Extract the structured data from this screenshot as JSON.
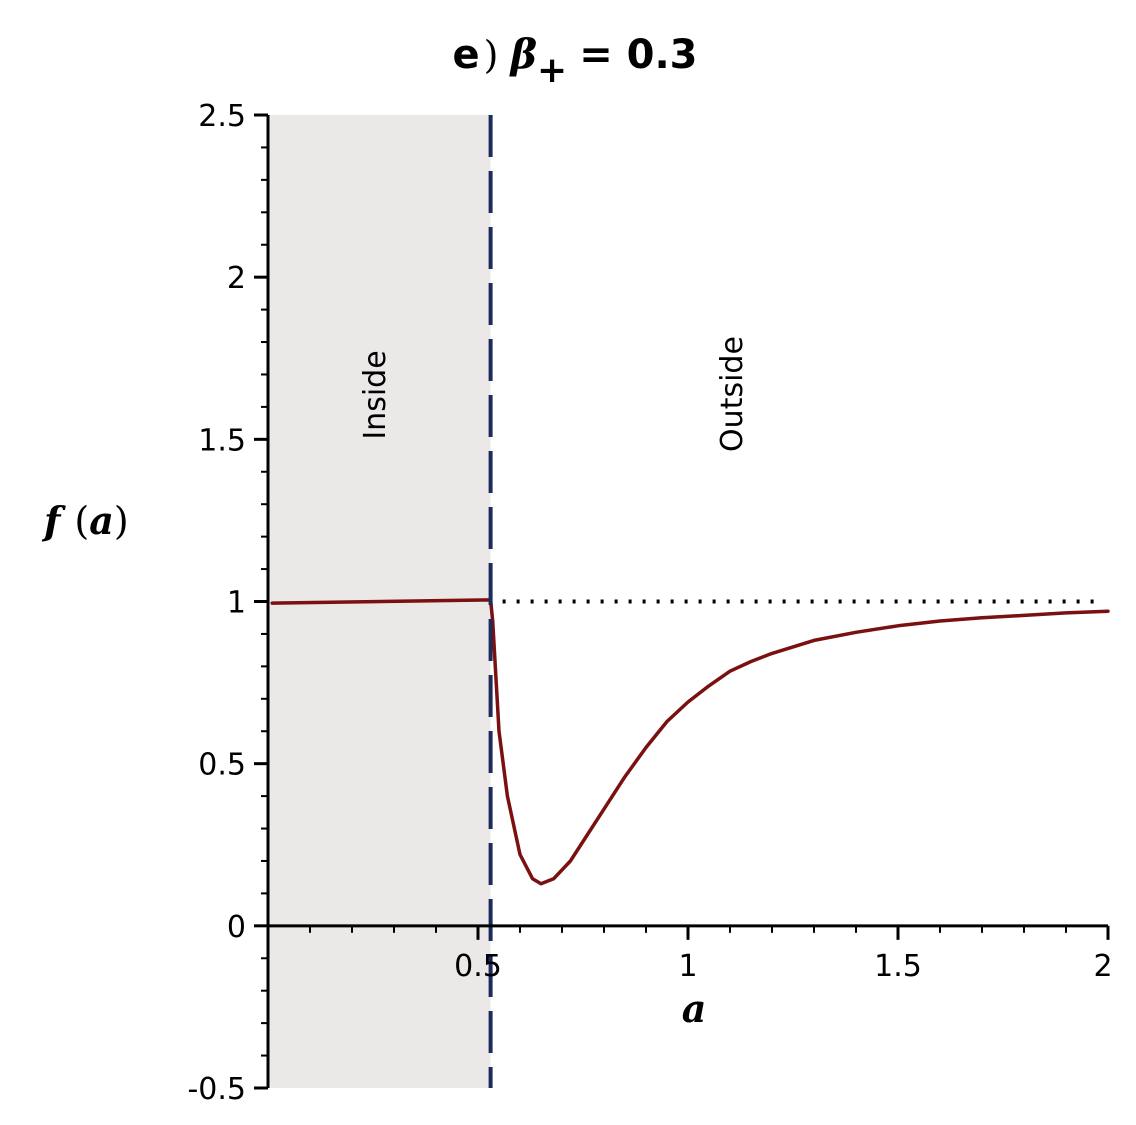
{
  "chart_data": {
    "type": "line",
    "title": {
      "label": "e",
      "symbol": "β",
      "subscript": "+",
      "value_text": "= 0.3"
    },
    "xlabel": "a",
    "ylabel": {
      "func": "f",
      "arg": "a"
    },
    "xlim": [
      0,
      2
    ],
    "ylim": [
      -0.5,
      2.5
    ],
    "x_ticks": [
      {
        "value": 0.5,
        "label": "0.5"
      },
      {
        "value": 1,
        "label": "1"
      },
      {
        "value": 1.5,
        "label": "1.5"
      },
      {
        "value": 2,
        "label": "2"
      }
    ],
    "y_ticks": [
      {
        "value": -0.5,
        "label": "-0.5"
      },
      {
        "value": 0,
        "label": "0"
      },
      {
        "value": 0.5,
        "label": "0.5"
      },
      {
        "value": 1,
        "label": "1"
      },
      {
        "value": 1.5,
        "label": "1.5"
      },
      {
        "value": 2,
        "label": "2"
      },
      {
        "value": 2.5,
        "label": "2.5"
      }
    ],
    "regions": [
      {
        "label": "Inside",
        "x_range": [
          0,
          0.53
        ],
        "color": "#ebe8e8"
      },
      {
        "label": "Outside",
        "x_range": [
          0.53,
          2
        ],
        "color": "#ffffff"
      }
    ],
    "boundary": {
      "x": 0.53,
      "style": "dashed",
      "color": "#1c2a5c"
    },
    "reference_line": {
      "y": 1,
      "x_range": [
        0.53,
        2
      ],
      "style": "dotted",
      "color": "#000000"
    },
    "series": [
      {
        "color": "#7a1010",
        "x": [
          0.01,
          0.53,
          0.535,
          0.55,
          0.57,
          0.6,
          0.63,
          0.65,
          0.68,
          0.72,
          0.76,
          0.8,
          0.85,
          0.9,
          0.95,
          1.0,
          1.05,
          1.1,
          1.15,
          1.2,
          1.3,
          1.4,
          1.5,
          1.6,
          1.7,
          1.8,
          1.9,
          2.0
        ],
        "y": [
          0.995,
          1.005,
          0.94,
          0.6,
          0.4,
          0.22,
          0.145,
          0.13,
          0.145,
          0.2,
          0.28,
          0.36,
          0.46,
          0.55,
          0.63,
          0.69,
          0.74,
          0.785,
          0.815,
          0.84,
          0.88,
          0.905,
          0.925,
          0.94,
          0.95,
          0.957,
          0.965,
          0.97
        ]
      }
    ],
    "grid": false,
    "legend": "none"
  }
}
